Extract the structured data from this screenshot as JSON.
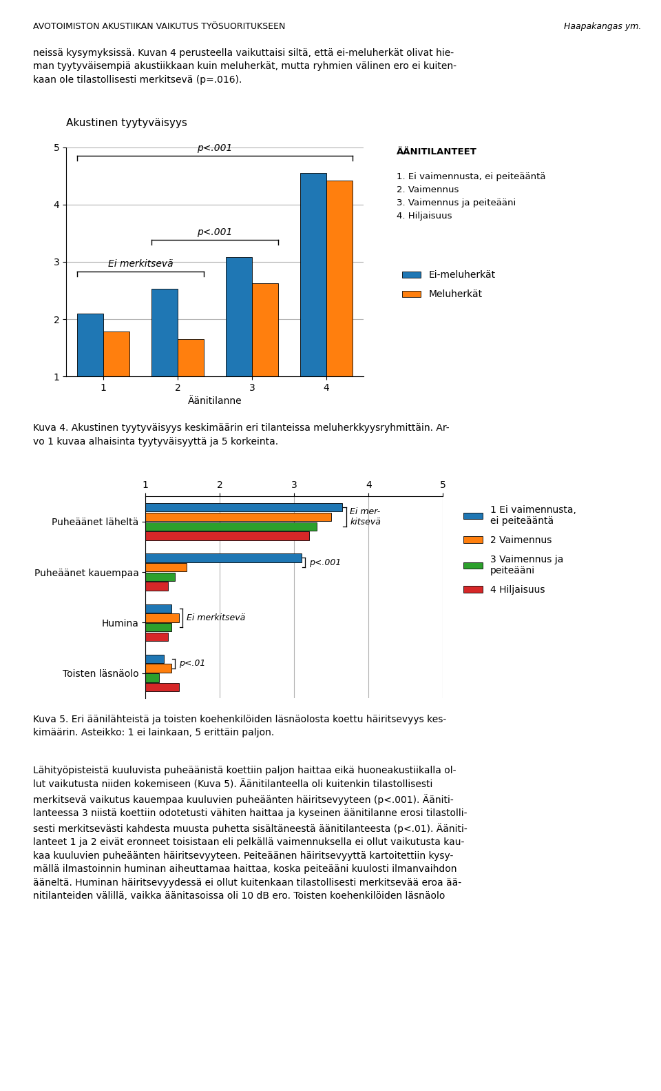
{
  "header": {
    "left": "AVOTOIMISTON AKUSTIIKAN VAIKUTUS TYÖSUORITUKSEEN",
    "right": "Haapakangas ym."
  },
  "text_before": "neissä kysymyksissä. Kuvan 4 perusteella vaikuttaisi siltä, että ei-meluherkät olivat hie-\nman tyytyväisempiä akustiikkaan kuin meluherkät, mutta ryhmien välinen ero ei kuiten-\nkaan ole tilastollisesti merkitsevä (p=.016).",
  "text_after": "Lähityöpisteistä kuuluvista puheäänistä koettiin paljon haittaa eikä huoneakustiikalla ol-\nlut vaikutusta niiden kokemiseen (Kuva 5). Äänitilanteella oli kuitenkin tilastollisesti\nmerkitsevä vaikutus kauempaa kuuluvien puheäänten häiritsevyyteen (p<.001). Ääniti-\nlanteessa 3 niistä koettiin odotetusti vähiten haittaa ja kyseinen äänitilanne erosi tilastolli-\nsesti merkitsevästi kahdesta muusta puhetta sisältäneestä äänitilanteesta (p<.01). Ääniti-\nlanteet 1 ja 2 eivät eronneet toisistaan eli pelkällä vaimennuksella ei ollut vaikutusta kau-\nkaa kuuluvien puheäänten häiritsevyyteen. Peiteäänen häiritsevyyttä kartoitettiin kysy-\nmällä ilmastoinnin huminan aiheuttamaa haittaa, koska peiteääni kuulosti ilmanvaihdon\nääneltä. Huminan häiritsevyydessä ei ollut kuitenkaan tilastollisesti merkitsevää eroa ää-\nnitilanteiden välillä, vaikka äänitasoissa oli 10 dB ero. Toisten koehenkilöiden läsnäolo",
  "chart_data": [
    {
      "type": "bar",
      "title": "Akustinen tyytyväisyys",
      "x_label": "Äänitilanne",
      "categories": [
        "1",
        "2",
        "3",
        "4"
      ],
      "series": [
        {
          "name": "Ei-meluherkät",
          "values": [
            2.1,
            2.53,
            3.08,
            4.55
          ]
        },
        {
          "name": "Meluherkät",
          "values": [
            1.78,
            1.65,
            2.63,
            4.42
          ]
        }
      ],
      "ylim": [
        1,
        5
      ],
      "yticks": [
        1,
        2,
        3,
        4,
        5
      ],
      "grid": true,
      "legend": "right",
      "annotations": [
        {
          "text": "Ei merkitsevä",
          "span": [
            0,
            1
          ]
        },
        {
          "text": "p<.001",
          "span": [
            1,
            2
          ]
        },
        {
          "text": "p<.001",
          "span": [
            0,
            3
          ]
        }
      ],
      "category_key": {
        "title": "ÄÄNITILANTEET",
        "items": [
          "1. Ei vaimennusta, ei peiteääntä",
          "2. Vaimennus",
          "3. Vaimennus ja peiteääni",
          "4. Hiljaisuus"
        ]
      },
      "caption": "Kuva 4. Akustinen tyytyväisyys keskimäärin eri tilanteissa meluherkkyysryhmittäin. Ar-\nvo 1 kuvaa alhaisinta tyytyväisyyttä ja 5 korkeinta."
    },
    {
      "type": "bar",
      "orientation": "horizontal",
      "categories": [
        "Puheäänet läheltä",
        "Puheäänet kauempaa",
        "Humina",
        "Toisten läsnäolo"
      ],
      "series": [
        {
          "name": "1 Ei vaimennusta,\nei peiteääntä",
          "values": [
            3.65,
            3.1,
            1.35,
            1.25
          ]
        },
        {
          "name": "2 Vaimennus",
          "values": [
            3.5,
            1.55,
            1.45,
            1.35
          ]
        },
        {
          "name": "3 Vaimennus ja\npeiteääni",
          "values": [
            3.3,
            1.4,
            1.35,
            1.18
          ]
        },
        {
          "name": "4 Hiljaisuus",
          "values": [
            3.2,
            1.3,
            1.3,
            1.45
          ]
        }
      ],
      "xlim": [
        1,
        5
      ],
      "xticks": [
        1,
        2,
        3,
        4,
        5
      ],
      "grid": true,
      "legend": "right",
      "annotations": [
        {
          "text": "Ei mer-\nkitsevä",
          "category": 0,
          "series_span": [
            0,
            2
          ]
        },
        {
          "text": "p<.001",
          "category": 1,
          "series_span": [
            0,
            1
          ]
        },
        {
          "text": "Ei merkitsevä",
          "category": 2,
          "series_span": [
            0,
            2
          ]
        },
        {
          "text": "p<.01",
          "category": 3,
          "series_span": [
            0,
            1
          ]
        }
      ],
      "caption": "Kuva 5. Eri äänilähteistä ja toisten koehenkilöiden läsnäolosta koettu häiritsevyys kes-\nkimäärin. Asteikko: 1 ei lainkaan, 5 erittäin paljon."
    }
  ]
}
